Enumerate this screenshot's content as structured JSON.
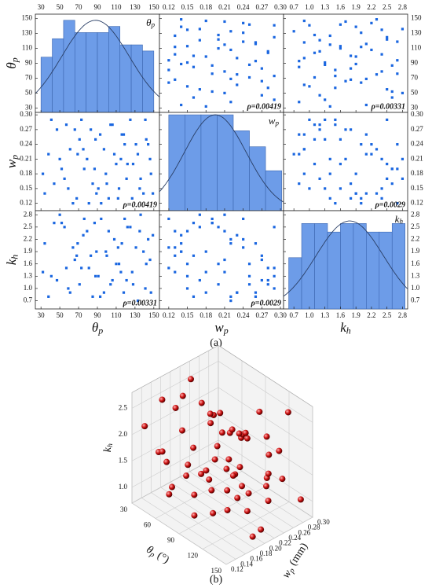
{
  "chart_data": [
    {
      "type": "scatter-matrix",
      "caption": "(a)",
      "point_color": "#1a66e0",
      "bar_color": "#6d9ce8",
      "curve_color": "#2a3f66",
      "variables": [
        {
          "symbol": "θ",
          "sub": "p",
          "lim": [
            24,
            156
          ],
          "ticks": [
            30,
            50,
            70,
            90,
            110,
            130,
            150
          ],
          "values": [
            34,
            47,
            52,
            61,
            68,
            73,
            79,
            85,
            88,
            94,
            99,
            104,
            108,
            113,
            118,
            122,
            127,
            131,
            136,
            141,
            146,
            149,
            38,
            44,
            57,
            64,
            71,
            76,
            83,
            91,
            97,
            102,
            110,
            116,
            121,
            125,
            133,
            139,
            144,
            32,
            50,
            59,
            66,
            75,
            81,
            87,
            93,
            100,
            106,
            112,
            119,
            128,
            135,
            142,
            147,
            41,
            55,
            69,
            89,
            115
          ],
          "hist": {
            "bins": [
              30,
              42,
              54,
              66,
              78,
              90,
              102,
              114,
              126,
              138,
              150
            ],
            "counts": [
              9,
              12,
              15,
              13,
              13,
              13,
              14,
              11,
              11,
              10
            ],
            "count_lim": [
              0,
              16
            ],
            "fit": {
              "mean": 88,
              "sd": 36,
              "peak": 15
            }
          }
        },
        {
          "symbol": "w",
          "sub": "p",
          "lim": [
            0.105,
            0.305
          ],
          "ticks": [
            0.12,
            0.15,
            0.18,
            0.21,
            0.24,
            0.27,
            {
              "value": 0.3,
              "label": "0.30"
            }
          ],
          "values": [
            0.14,
            0.27,
            0.19,
            0.23,
            0.13,
            0.29,
            0.21,
            0.16,
            0.25,
            0.12,
            0.18,
            0.28,
            0.22,
            0.15,
            0.26,
            0.2,
            0.13,
            0.24,
            0.17,
            0.29,
            0.21,
            0.14,
            0.22,
            0.16,
            0.28,
            0.12,
            0.25,
            0.19,
            0.27,
            0.15,
            0.23,
            0.13,
            0.2,
            0.26,
            0.17,
            0.29,
            0.22,
            0.14,
            0.24,
            0.18,
            0.21,
            0.15,
            0.27,
            0.23,
            0.12,
            0.19,
            0.26,
            0.16,
            0.28,
            0.13,
            0.24,
            0.2,
            0.15,
            0.25,
            0.18,
            0.29,
            0.17,
            0.22,
            0.14,
            0.21
          ],
          "hist": {
            "bins": [
              0.12,
              0.146,
              0.172,
              0.198,
              0.224,
              0.25,
              0.276,
              0.302
            ],
            "counts": [
              12,
              12,
              12,
              12,
              10,
              8,
              5
            ],
            "count_lim": [
              0,
              12.3
            ],
            "fit": {
              "mean": 0.195,
              "sd": 0.05,
              "peak": 12
            }
          }
        },
        {
          "symbol": "k",
          "sub": "h",
          "lim": [
            0.5,
            2.9
          ],
          "ticks": [
            0.7,
            {
              "value": 1,
              "label": "1.0"
            },
            1.3,
            1.6,
            1.9,
            2.2,
            2.5,
            2.8
          ],
          "values": [
            2.1,
            1.2,
            2.6,
            0.9,
            1.8,
            1.5,
            2.4,
            0.8,
            1.3,
            2.7,
            1.9,
            1.1,
            2.2,
            1.6,
            0.9,
            2.5,
            1.4,
            2,
            2.8,
            1,
            1.7,
            2.3,
            0.8,
            2.6,
            1.5,
            2,
            1.1,
            2.7,
            1.8,
            1.3,
            0.9,
            2.4,
            1.6,
            2.1,
            1.2,
            2.5,
            0.7,
            1.9,
            2.2,
            1.4,
            2.8,
            1,
            1.7,
            2.3,
            1.5,
            2.6,
            0.8,
            1.8,
            1.2,
            2,
            2.7,
            1.1,
            2.4,
            1.6,
            0.9,
            1.3,
            2.5,
            2.1,
            1.9,
            1.4
          ],
          "hist": {
            "bins": [
              0.6,
              0.85,
              1.1,
              1.35,
              1.6,
              1.85,
              2.1,
              2.35,
              2.6,
              2.85
            ],
            "counts": [
              6,
              10,
              10,
              9,
              10,
              10,
              9,
              9,
              10
            ],
            "count_lim": [
              0,
              11.5
            ],
            "fit": {
              "mean": 1.78,
              "sd": 0.65,
              "peak": 10.3
            }
          }
        }
      ],
      "rho_labels": [
        [
          null,
          "ρ=0.00419",
          "ρ=0.00331"
        ],
        [
          "ρ=0.00419",
          null,
          "ρ=0.0029"
        ],
        [
          "ρ=0.00331",
          "ρ=0.0029",
          null
        ]
      ]
    },
    {
      "type": "scatter3d",
      "caption": "(b)",
      "color": "#cc1111",
      "axes": {
        "x": {
          "symbol": "θ",
          "sub": "p",
          "unit": "(°)",
          "lim": [
            30,
            150
          ],
          "ticks": [
            30,
            60,
            90,
            120,
            150
          ]
        },
        "y": {
          "symbol": "w",
          "sub": "p",
          "unit": "(mm)",
          "lim": [
            0.12,
            0.3
          ],
          "ticks": [
            0.12,
            0.14,
            0.16,
            0.18,
            {
              "value": 0.2,
              "label": "0.20"
            },
            0.22,
            0.24,
            0.26,
            0.28,
            {
              "value": 0.3,
              "label": "0.30"
            }
          ]
        },
        "z": {
          "symbol": "k",
          "sub": "h",
          "lim": [
            0.7,
            2.8
          ],
          "ticks": [
            {
              "value": 1,
              "label": "1.0"
            },
            1.5,
            {
              "value": 2,
              "label": "2.0"
            },
            2.5
          ]
        }
      }
    }
  ]
}
